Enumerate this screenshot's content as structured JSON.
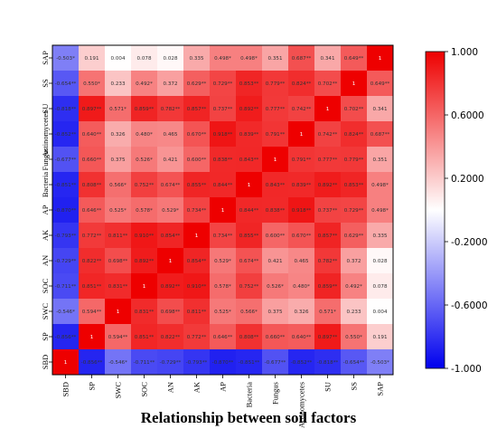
{
  "chart_data": {
    "type": "heatmap",
    "title": "Relationship between soil factors",
    "x_categories": [
      "SBD",
      "SP",
      "SWC",
      "SOC",
      "AN",
      "AK",
      "AP",
      "Bacteria",
      "Fungus",
      "Actinomycetes",
      "SU",
      "SS",
      "SAP"
    ],
    "y_categories_top_to_bottom": [
      "SAP",
      "SS",
      "SU",
      "Actinomycetes",
      "Fungus",
      "Bacteria",
      "AP",
      "AK",
      "AN",
      "SOC",
      "SWC",
      "SP",
      "SBD"
    ],
    "cells": [
      [
        "-0.503*",
        "0.191",
        "0.004",
        "0.078",
        "0.028",
        "0.335",
        "0.498*",
        "0.498*",
        "0.351",
        "0.687**",
        "0.341",
        "0.649**",
        "1"
      ],
      [
        "-0.654**",
        "0.550*",
        "0.233",
        "0.492*",
        "0.372",
        "0.629**",
        "0.729**",
        "0.853**",
        "0.779**",
        "0.824**",
        "0.702**",
        "1",
        "0.649**"
      ],
      [
        "-0.818**",
        "0.897**",
        "0.571*",
        "0.859**",
        "0.782**",
        "0.857**",
        "0.737**",
        "0.892**",
        "0.777**",
        "0.742**",
        "1",
        "0.702**",
        "0.341"
      ],
      [
        "-0.852**",
        "0.640**",
        "0.326",
        "0.480*",
        "0.465",
        "0.670**",
        "0.918**",
        "0.839**",
        "0.791**",
        "1",
        "0.742**",
        "0.824**",
        "0.687**"
      ],
      [
        "-0.677**",
        "0.660**",
        "0.375",
        "0.526*",
        "0.421",
        "0.600**",
        "0.838**",
        "0.843**",
        "1",
        "0.791**",
        "0.777**",
        "0.779**",
        "0.351"
      ],
      [
        "-0.851**",
        "0.808**",
        "0.566*",
        "0.752**",
        "0.674**",
        "0.855**",
        "0.844**",
        "1",
        "0.843**",
        "0.839**",
        "0.892**",
        "0.853**",
        "0.498*"
      ],
      [
        "-0.870**",
        "0.646**",
        "0.525*",
        "0.578*",
        "0.529*",
        "0.734**",
        "1",
        "0.844**",
        "0.838**",
        "0.918**",
        "0.737**",
        "0.729**",
        "0.498*"
      ],
      [
        "-0.793**",
        "0.772**",
        "0.811**",
        "0.910**",
        "0.854**",
        "1",
        "0.734**",
        "0.855**",
        "0.600**",
        "0.670**",
        "0.857**",
        "0.629**",
        "0.335"
      ],
      [
        "-0.729**",
        "0.822**",
        "0.698**",
        "0.892**",
        "1",
        "0.854**",
        "0.529*",
        "0.674**",
        "0.421",
        "0.465",
        "0.782**",
        "0.372",
        "0.028"
      ],
      [
        "-0.711**",
        "0.851**",
        "0.831**",
        "1",
        "0.892**",
        "0.910**",
        "0.578*",
        "0.752**",
        "0.526*",
        "0.480*",
        "0.859**",
        "0.492*",
        "0.078"
      ],
      [
        "-0.546*",
        "0.594**",
        "1",
        "0.831**",
        "0.698**",
        "0.811**",
        "0.525*",
        "0.566*",
        "0.375",
        "0.326",
        "0.571*",
        "0.233",
        "0.004"
      ],
      [
        "-0.856**",
        "1",
        "0.594**",
        "0.851**",
        "0.822**",
        "0.772**",
        "0.646**",
        "0.808**",
        "0.660**",
        "0.640**",
        "0.897**",
        "0.550*",
        "0.191"
      ],
      [
        "1",
        "-0.856**",
        "-0.546*",
        "-0.711**",
        "-0.729**",
        "-0.793**",
        "-0.870**",
        "-0.851**",
        "-0.677**",
        "-0.852**",
        "-0.818**",
        "-0.654**",
        "-0.503*"
      ]
    ],
    "colorbar": {
      "min": -1.0,
      "max": 1.0,
      "tick_labels": [
        "1.000",
        "0.6000",
        "0.2000",
        "-0.2000",
        "-0.6000",
        "-1.000"
      ],
      "colors": {
        "high": "#ee0000",
        "mid": "#ffffff",
        "low": "#0000ee"
      }
    }
  }
}
